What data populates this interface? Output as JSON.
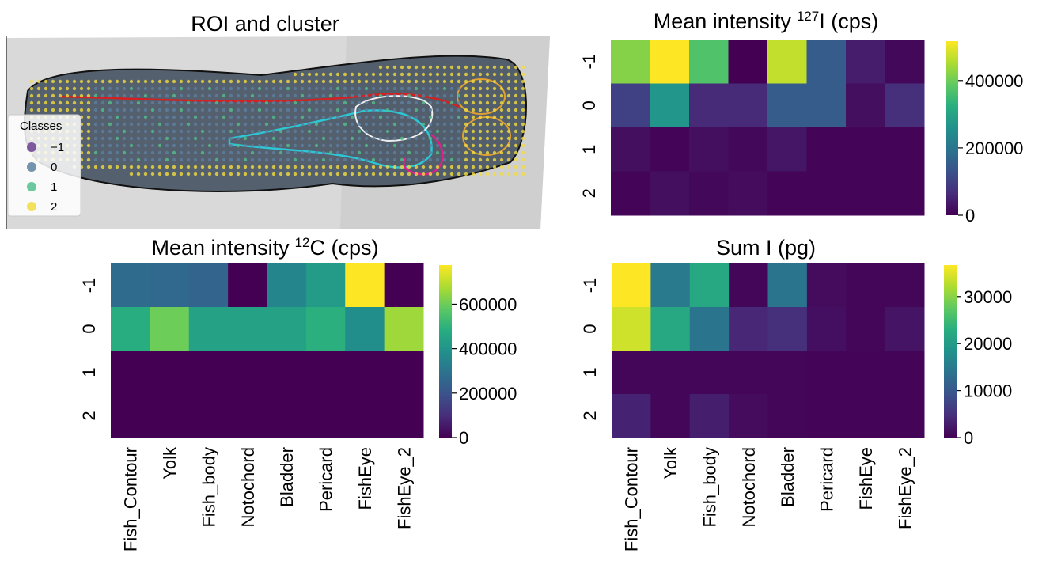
{
  "chart_data": [
    {
      "type": "image",
      "title": "ROI and cluster",
      "legend": {
        "title": "Classes",
        "entries": [
          {
            "label": "−1",
            "color": "#6b3f8f"
          },
          {
            "label": "0",
            "color": "#5d7fa0"
          },
          {
            "label": "1",
            "color": "#52bf8c"
          },
          {
            "label": "2",
            "color": "#f1dc3e"
          }
        ]
      }
    },
    {
      "type": "heatmap",
      "title": "Mean intensity",
      "title_superscript": "127",
      "title_suffix": "I (cps)",
      "colormap": "viridis",
      "row_labels": [
        "-1",
        "0",
        "1",
        "2"
      ],
      "values": [
        [
          420000,
          517000,
          370000,
          0,
          470000,
          150000,
          40000,
          10000
        ],
        [
          100000,
          270000,
          60000,
          60000,
          150000,
          150000,
          20000,
          70000
        ],
        [
          20000,
          5000,
          20000,
          10000,
          30000,
          5000,
          5000,
          5000
        ],
        [
          5000,
          20000,
          10000,
          15000,
          5000,
          5000,
          5000,
          5000
        ]
      ],
      "clim": [
        0,
        517000
      ],
      "cticks": [
        0,
        200000,
        400000
      ]
    },
    {
      "type": "heatmap",
      "title": "Mean intensity",
      "title_superscript": "12",
      "title_suffix": "C (cps)",
      "colormap": "viridis",
      "row_labels": [
        "-1",
        "0",
        "1",
        "2"
      ],
      "categories": [
        "Fish_Contour",
        "Yolk",
        "Fish_body",
        "Notochord",
        "Bladder",
        "Pericard",
        "FishEye",
        "FishEye_2"
      ],
      "values": [
        [
          270000,
          260000,
          250000,
          0,
          350000,
          420000,
          776000,
          0
        ],
        [
          480000,
          600000,
          440000,
          440000,
          440000,
          490000,
          380000,
          660000
        ],
        [
          0,
          0,
          0,
          0,
          0,
          0,
          0,
          0
        ],
        [
          0,
          0,
          0,
          0,
          0,
          0,
          0,
          0
        ]
      ],
      "clim": [
        0,
        776000
      ],
      "cticks": [
        0,
        200000,
        400000,
        600000
      ]
    },
    {
      "type": "heatmap",
      "title": "Sum I (pg)",
      "colormap": "viridis",
      "row_labels": [
        "-1",
        "0",
        "1",
        "2"
      ],
      "categories": [
        "Fish_Contour",
        "Yolk",
        "Fish_body",
        "Notochord",
        "Bladder",
        "Pericard",
        "FishEye",
        "FishEye_2"
      ],
      "values": [
        [
          36700,
          15000,
          22000,
          500,
          14000,
          1000,
          500,
          500
        ],
        [
          34000,
          22000,
          14000,
          4000,
          5000,
          1500,
          500,
          2000
        ],
        [
          500,
          500,
          500,
          500,
          500,
          300,
          300,
          300
        ],
        [
          3500,
          500,
          3000,
          1000,
          500,
          300,
          300,
          300
        ]
      ],
      "clim": [
        0,
        36700
      ],
      "cticks": [
        0,
        10000,
        20000,
        30000
      ]
    }
  ]
}
